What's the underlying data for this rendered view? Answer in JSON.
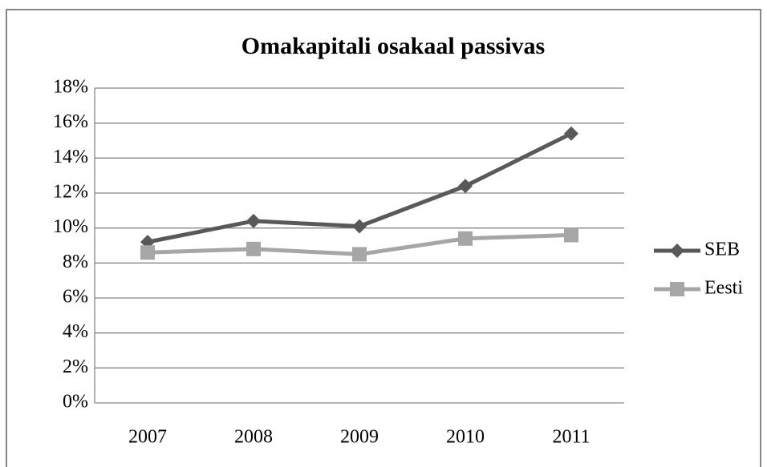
{
  "chart_data": {
    "type": "line",
    "title": "Omakapitali osakaal passivas",
    "categories": [
      "2007",
      "2008",
      "2009",
      "2010",
      "2011"
    ],
    "series": [
      {
        "name": "SEB",
        "color": "#595959",
        "marker": "diamond",
        "values": [
          9.2,
          10.4,
          10.1,
          12.4,
          15.4
        ]
      },
      {
        "name": "Eesti",
        "color": "#a6a6a6",
        "marker": "square",
        "values": [
          8.6,
          8.8,
          8.5,
          9.4,
          9.6
        ]
      }
    ],
    "ylim": [
      0,
      18
    ],
    "yticks": [
      {
        "value": 0,
        "label": "0%"
      },
      {
        "value": 2,
        "label": "2%"
      },
      {
        "value": 4,
        "label": "4%"
      },
      {
        "value": 6,
        "label": "6%"
      },
      {
        "value": 8,
        "label": "8%"
      },
      {
        "value": 10,
        "label": "10%"
      },
      {
        "value": 12,
        "label": "12%"
      },
      {
        "value": 14,
        "label": "14%"
      },
      {
        "value": 16,
        "label": "16%"
      },
      {
        "value": 18,
        "label": "18%"
      }
    ],
    "grid": true,
    "legend": "right"
  }
}
